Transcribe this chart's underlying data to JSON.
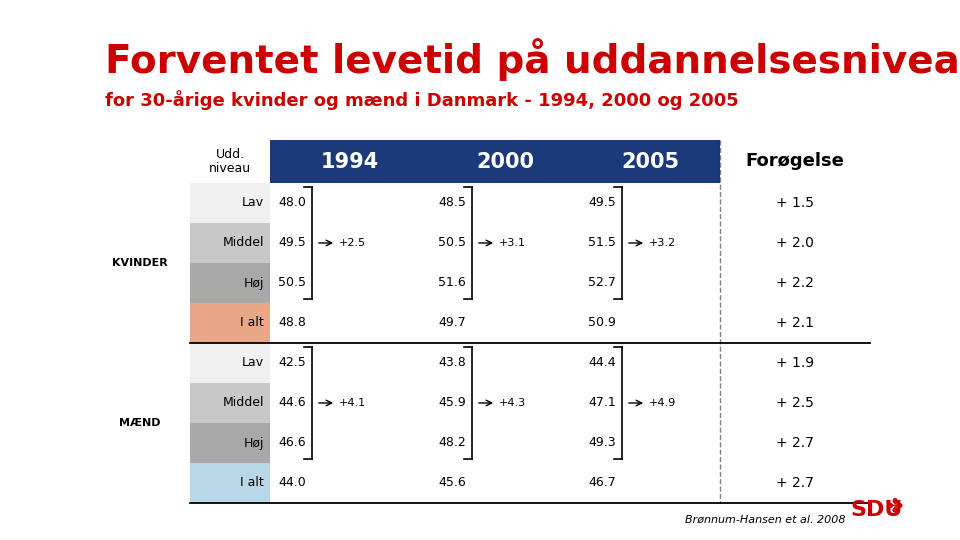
{
  "title_line1": "Forventet levetid på uddannelsesniveau",
  "title_line2": "for 30-årige kvinder og mænd i Danmark - 1994, 2000 og 2005",
  "title_color": "#cc0000",
  "header_bg": "#1a3a7a",
  "header_text_color": "#ffffff",
  "col_headers": [
    "1994",
    "2000",
    "2005",
    "Forøgelse"
  ],
  "row_header_col": "Udd.\nniveau",
  "rows": [
    {
      "group": "KVINDER",
      "level": "Lav",
      "bg": "#f0f0f0",
      "y94": "48.0",
      "y00": "48.5",
      "y05": "49.5",
      "forog": "+ 1.5"
    },
    {
      "group": "KVINDER",
      "level": "Middel",
      "bg": "#c8c8c8",
      "y94": "49.5",
      "y00": "50.5",
      "y05": "51.5",
      "forog": "+ 2.0"
    },
    {
      "group": "KVINDER",
      "level": "Høj",
      "bg": "#a8a8a8",
      "y94": "50.5",
      "y00": "51.6",
      "y05": "52.7",
      "forog": "+ 2.2"
    },
    {
      "group": "KVINDER",
      "level": "I alt",
      "bg": "#e8a888",
      "y94": "48.8",
      "y00": "49.7",
      "y05": "50.9",
      "forog": "+ 2.1"
    },
    {
      "group": "MÆND",
      "level": "Lav",
      "bg": "#f0f0f0",
      "y94": "42.5",
      "y00": "43.8",
      "y05": "44.4",
      "forog": "+ 1.9"
    },
    {
      "group": "MÆND",
      "level": "Middel",
      "bg": "#c8c8c8",
      "y94": "44.6",
      "y00": "45.9",
      "y05": "47.1",
      "forog": "+ 2.5"
    },
    {
      "group": "MÆND",
      "level": "Høj",
      "bg": "#a8a8a8",
      "y94": "46.6",
      "y00": "48.2",
      "y05": "49.3",
      "forog": "+ 2.7"
    },
    {
      "group": "MÆND",
      "level": "I alt",
      "bg": "#b8d8e8",
      "y94": "44.0",
      "y00": "45.6",
      "y05": "46.7",
      "forog": "+ 2.7"
    }
  ],
  "brackets_kvinder": [
    {
      "col_idx": 0,
      "diff": "+2.5"
    },
    {
      "col_idx": 1,
      "diff": "+3.1"
    },
    {
      "col_idx": 2,
      "diff": "+3.2"
    }
  ],
  "brackets_maend": [
    {
      "col_idx": 0,
      "diff": "+4.1"
    },
    {
      "col_idx": 1,
      "diff": "+4.3"
    },
    {
      "col_idx": 2,
      "diff": "+4.9"
    }
  ],
  "footer_text": "Brønnum-Hansen et al. 2008",
  "bg_color": "#ffffff"
}
